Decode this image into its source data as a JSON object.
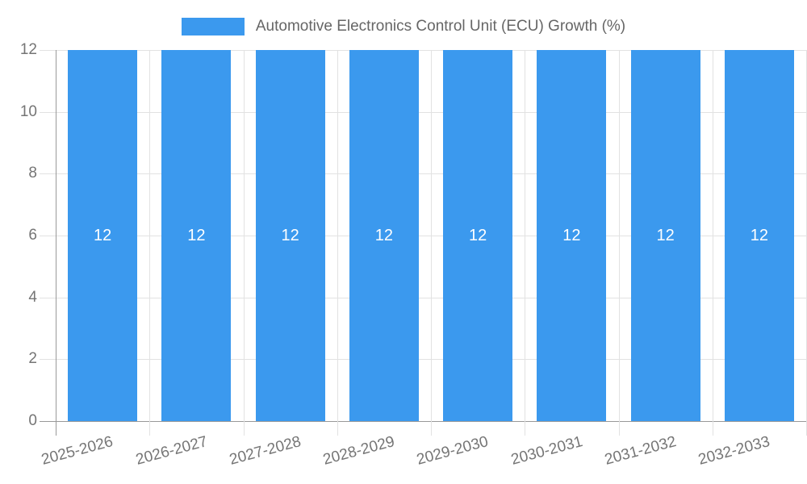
{
  "chart_data": {
    "type": "bar",
    "title": "Automotive Electronics Control Unit (ECU) Growth (%)",
    "categories": [
      "2025-2026",
      "2026-2027",
      "2027-2028",
      "2028-2029",
      "2029-2030",
      "2030-2031",
      "2031-2032",
      "2032-2033"
    ],
    "values": [
      12,
      12,
      12,
      12,
      12,
      12,
      12,
      12
    ],
    "bar_value_labels": [
      "12",
      "12",
      "12",
      "12",
      "12",
      "12",
      "12",
      "12"
    ],
    "xlabel": "",
    "ylabel": "",
    "ylim": [
      0,
      12
    ],
    "yticks": [
      0,
      2,
      4,
      6,
      8,
      10,
      12
    ],
    "grid": true,
    "legend_position": "top-center",
    "x_label_rotation_deg": -15,
    "colors": {
      "bar": "#3b99ee",
      "grid": "#e2e2e2",
      "axis": "#999999",
      "tick_text": "#757575",
      "legend_text": "#666666",
      "bar_label_text": "#ffffff",
      "background": "#ffffff"
    }
  }
}
